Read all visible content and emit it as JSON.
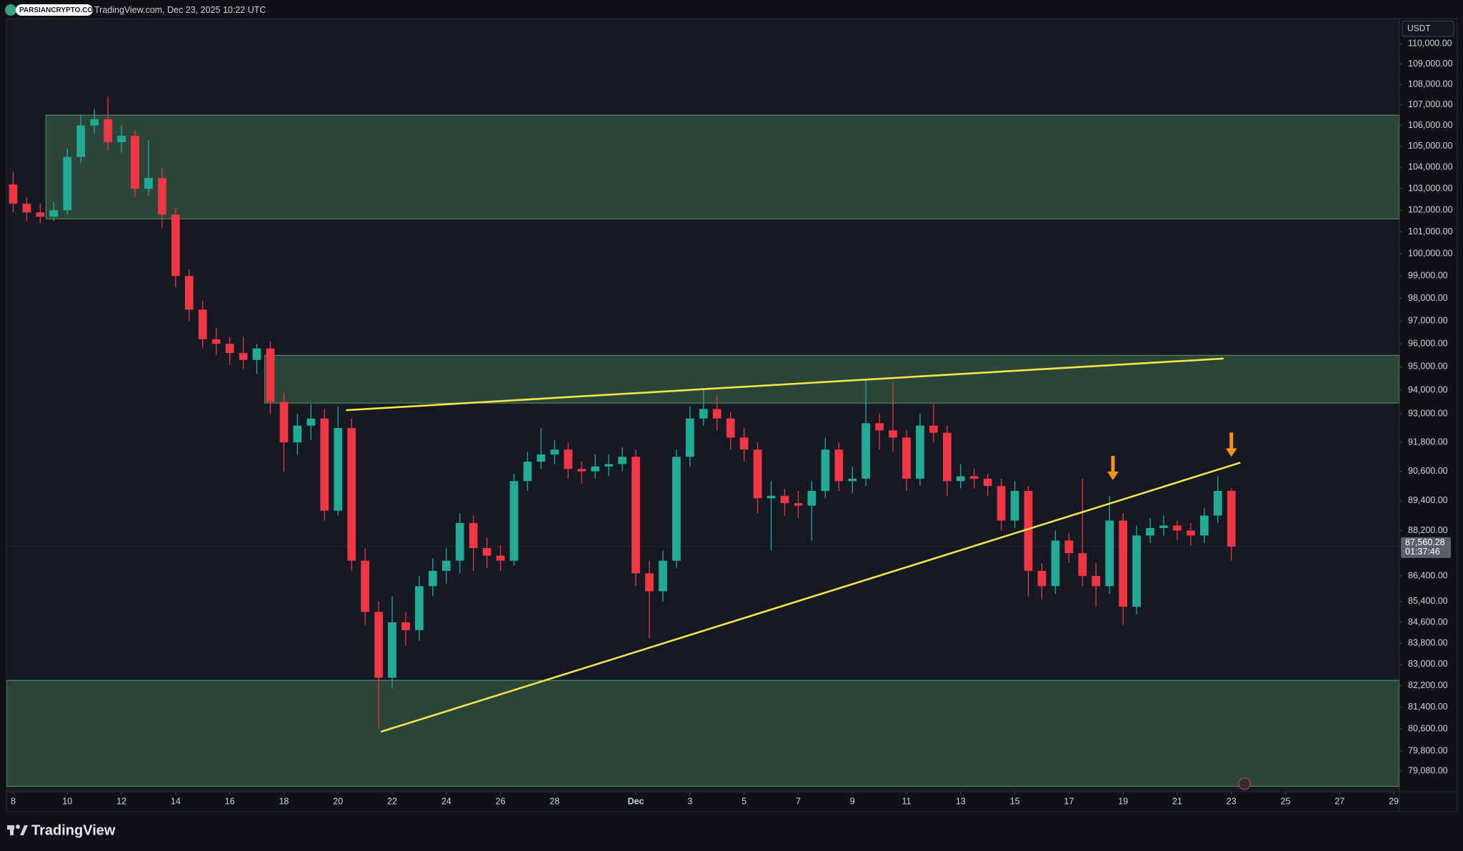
{
  "watermark": "PARSIANCRYPTO.COM",
  "source": "TradingView.com, Dec 23, 2025 10:22 UTC",
  "brand": "TradingView",
  "chart_data": {
    "type": "candlestick",
    "currency": "USDT",
    "log_scale": true,
    "grid": false,
    "up_color": "#22ab94",
    "down_color": "#f23645",
    "zone_color": "#2e4a3b",
    "zone_border": "#5a9468",
    "trendline_color": "#f2e54a",
    "marker_color": "#f7931a",
    "x": [
      "2025-11-08T00:00",
      "2025-11-08T12:00",
      "2025-11-09T00:00",
      "2025-11-09T12:00",
      "2025-11-10T00:00",
      "2025-11-10T12:00",
      "2025-11-11T00:00",
      "2025-11-11T12:00",
      "2025-11-12T00:00",
      "2025-11-12T12:00",
      "2025-11-13T00:00",
      "2025-11-13T12:00",
      "2025-11-14T00:00",
      "2025-11-14T12:00",
      "2025-11-15T00:00",
      "2025-11-15T12:00",
      "2025-11-16T00:00",
      "2025-11-16T12:00",
      "2025-11-17T00:00",
      "2025-11-17T12:00",
      "2025-11-18T00:00",
      "2025-11-18T12:00",
      "2025-11-19T00:00",
      "2025-11-19T12:00",
      "2025-11-20T00:00",
      "2025-11-20T12:00",
      "2025-11-21T00:00",
      "2025-11-21T12:00",
      "2025-11-22T00:00",
      "2025-11-22T12:00",
      "2025-11-23T00:00",
      "2025-11-23T12:00",
      "2025-11-24T00:00",
      "2025-11-24T12:00",
      "2025-11-25T00:00",
      "2025-11-25T12:00",
      "2025-11-26T00:00",
      "2025-11-26T12:00",
      "2025-11-27T00:00",
      "2025-11-27T12:00",
      "2025-11-28T00:00",
      "2025-11-28T12:00",
      "2025-11-29T00:00",
      "2025-11-29T12:00",
      "2025-11-30T00:00",
      "2025-11-30T12:00",
      "2025-12-01T00:00",
      "2025-12-01T12:00",
      "2025-12-02T00:00",
      "2025-12-02T12:00",
      "2025-12-03T00:00",
      "2025-12-03T12:00",
      "2025-12-04T00:00",
      "2025-12-04T12:00",
      "2025-12-05T00:00",
      "2025-12-05T12:00",
      "2025-12-06T00:00",
      "2025-12-06T12:00",
      "2025-12-07T00:00",
      "2025-12-07T12:00",
      "2025-12-08T00:00",
      "2025-12-08T12:00",
      "2025-12-09T00:00",
      "2025-12-09T12:00",
      "2025-12-10T00:00",
      "2025-12-10T12:00",
      "2025-12-11T00:00",
      "2025-12-11T12:00",
      "2025-12-12T00:00",
      "2025-12-12T12:00",
      "2025-12-13T00:00",
      "2025-12-13T12:00",
      "2025-12-14T00:00",
      "2025-12-14T12:00",
      "2025-12-15T00:00",
      "2025-12-15T12:00",
      "2025-12-16T00:00",
      "2025-12-16T12:00",
      "2025-12-17T00:00",
      "2025-12-17T12:00",
      "2025-12-18T00:00",
      "2025-12-18T12:00",
      "2025-12-19T00:00",
      "2025-12-19T12:00",
      "2025-12-20T00:00",
      "2025-12-20T12:00",
      "2025-12-21T00:00",
      "2025-12-21T12:00",
      "2025-12-22T00:00",
      "2025-12-22T12:00",
      "2025-12-23T00:00"
    ],
    "open": [
      103200,
      102300,
      101900,
      101700,
      102000,
      104500,
      106000,
      106300,
      105200,
      105500,
      103000,
      103500,
      101800,
      99000,
      97500,
      96200,
      96000,
      95600,
      95300,
      95800,
      93500,
      91800,
      92500,
      92800,
      89000,
      92400,
      87000,
      85000,
      82500,
      84600,
      84300,
      86000,
      86600,
      87000,
      88500,
      87500,
      87200,
      87000,
      90200,
      91000,
      91300,
      91500,
      90700,
      90600,
      90800,
      90900,
      91200,
      86500,
      85800,
      87000,
      91200,
      92800,
      93200,
      92800,
      92000,
      91500,
      89500,
      89600,
      89300,
      89200,
      89800,
      91500,
      90200,
      90300,
      92600,
      92300,
      92000,
      90300,
      92500,
      92200,
      90200,
      90400,
      90300,
      90000,
      88600,
      89800,
      86600,
      86000,
      87800,
      87300,
      86400,
      86000,
      88600,
      85200,
      88000,
      88300,
      88400,
      88200,
      88000,
      88800,
      89800
    ],
    "high": [
      103800,
      102600,
      102300,
      102400,
      104900,
      106500,
      106800,
      107400,
      106000,
      105800,
      105300,
      104000,
      102100,
      99300,
      97900,
      96700,
      96300,
      96300,
      96000,
      96100,
      93900,
      93000,
      93400,
      93200,
      93300,
      92800,
      87500,
      85400,
      85600,
      85000,
      86400,
      87100,
      87500,
      88900,
      88800,
      87900,
      87600,
      90500,
      91400,
      92400,
      91900,
      91800,
      91000,
      91300,
      91300,
      91600,
      91500,
      87000,
      87400,
      91500,
      93300,
      94000,
      93800,
      93100,
      92400,
      91800,
      90200,
      89900,
      89800,
      90200,
      92000,
      91800,
      90800,
      94500,
      93000,
      94300,
      92300,
      93000,
      93400,
      92500,
      90900,
      90700,
      90500,
      90300,
      90200,
      90000,
      86900,
      88200,
      88100,
      90300,
      86900,
      89600,
      88900,
      88400,
      88700,
      88800,
      88600,
      88500,
      89100,
      90400,
      89900
    ],
    "low": [
      101900,
      101500,
      101400,
      101500,
      101800,
      104200,
      105600,
      104800,
      104700,
      102600,
      102700,
      101200,
      98500,
      97000,
      95800,
      95500,
      95100,
      94900,
      94700,
      93000,
      90600,
      91300,
      91900,
      88600,
      88800,
      86600,
      84500,
      80600,
      82100,
      83700,
      83900,
      85600,
      86100,
      86500,
      86600,
      86700,
      86600,
      86800,
      89800,
      90700,
      90900,
      90300,
      90100,
      90300,
      90400,
      90600,
      86000,
      84000,
      85400,
      86700,
      90800,
      92500,
      92300,
      91500,
      91000,
      88900,
      87400,
      88800,
      88700,
      87800,
      89500,
      89800,
      89700,
      90000,
      91500,
      91400,
      89800,
      90000,
      91800,
      89600,
      89900,
      89900,
      89600,
      88200,
      88300,
      85600,
      85500,
      85700,
      86900,
      86000,
      85200,
      85700,
      84500,
      84900,
      87700,
      88000,
      87800,
      87600,
      87700,
      88500,
      87000
    ],
    "close": [
      102300,
      101900,
      101700,
      102000,
      104500,
      106000,
      106300,
      105200,
      105500,
      103000,
      103500,
      101800,
      99000,
      97500,
      96200,
      96000,
      95600,
      95300,
      95800,
      93500,
      91800,
      92500,
      92800,
      89000,
      92400,
      87000,
      85000,
      82500,
      84600,
      84300,
      86000,
      86600,
      87000,
      88500,
      87500,
      87200,
      87000,
      90200,
      91000,
      91300,
      91500,
      90700,
      90600,
      90800,
      90900,
      91200,
      86500,
      85800,
      87000,
      91200,
      92800,
      93200,
      92800,
      92000,
      91500,
      89500,
      89600,
      89300,
      89200,
      89800,
      91500,
      90200,
      90300,
      92600,
      92300,
      92000,
      90300,
      92500,
      92200,
      90200,
      90400,
      90300,
      90000,
      88600,
      89800,
      86600,
      86000,
      87800,
      87300,
      86400,
      86000,
      88600,
      85200,
      88000,
      88300,
      88400,
      88200,
      88000,
      88800,
      89800,
      87560.28
    ],
    "last_price": {
      "value": 87560.28,
      "label": "87,560.28"
    },
    "countdown": "01:37:46",
    "zones": [
      {
        "x_start": "2025-11-09T05:00",
        "low": 101600,
        "high": 106500
      },
      {
        "x_start": "2025-11-17T07:00",
        "low": 93450,
        "high": 95500
      },
      {
        "low": 78530,
        "high": 82400
      }
    ],
    "trendlines": [
      {
        "x": [
          "2025-11-20T07:00",
          "2025-12-22T17:00"
        ],
        "y": [
          93150,
          95360
        ]
      },
      {
        "x": [
          "2025-11-21T14:00",
          "2025-12-23T08:00"
        ],
        "y": [
          80500,
          90960
        ]
      }
    ],
    "markers": [
      {
        "x": "2025-12-18T15:00",
        "y": 90240
      },
      {
        "x": "2025-12-23T00:00",
        "y": 91200
      }
    ],
    "xlim": [
      "2025-11-07T18:00",
      "2025-12-29T05:00"
    ],
    "ylim": [
      78340,
      111270
    ],
    "xticks": [
      {
        "value": "2025-11-08T00:00",
        "label": "8"
      },
      {
        "value": "2025-11-10T00:00",
        "label": "10"
      },
      {
        "value": "2025-11-12T00:00",
        "label": "12"
      },
      {
        "value": "2025-11-14T00:00",
        "label": "14"
      },
      {
        "value": "2025-11-16T00:00",
        "label": "16"
      },
      {
        "value": "2025-11-18T00:00",
        "label": "18"
      },
      {
        "value": "2025-11-20T00:00",
        "label": "20"
      },
      {
        "value": "2025-11-22T00:00",
        "label": "22"
      },
      {
        "value": "2025-11-24T00:00",
        "label": "24"
      },
      {
        "value": "2025-11-26T00:00",
        "label": "26"
      },
      {
        "value": "2025-11-28T00:00",
        "label": "28"
      },
      {
        "value": "2025-12-01T00:00",
        "label": "Dec"
      },
      {
        "value": "2025-12-03T00:00",
        "label": "3"
      },
      {
        "value": "2025-12-05T00:00",
        "label": "5"
      },
      {
        "value": "2025-12-07T00:00",
        "label": "7"
      },
      {
        "value": "2025-12-09T00:00",
        "label": "9"
      },
      {
        "value": "2025-12-11T00:00",
        "label": "11"
      },
      {
        "value": "2025-12-13T00:00",
        "label": "13"
      },
      {
        "value": "2025-12-15T00:00",
        "label": "15"
      },
      {
        "value": "2025-12-17T00:00",
        "label": "17"
      },
      {
        "value": "2025-12-19T00:00",
        "label": "19"
      },
      {
        "value": "2025-12-21T00:00",
        "label": "21"
      },
      {
        "value": "2025-12-23T00:00",
        "label": "23"
      },
      {
        "value": "2025-12-25T00:00",
        "label": "25"
      },
      {
        "value": "2025-12-27T00:00",
        "label": "27"
      },
      {
        "value": "2025-12-29T00:00",
        "label": "29"
      }
    ],
    "yticks": [
      {
        "value": 110000,
        "label": "110,000.00"
      },
      {
        "value": 109000,
        "label": "109,000.00"
      },
      {
        "value": 108000,
        "label": "108,000.00"
      },
      {
        "value": 107000,
        "label": "107,000.00"
      },
      {
        "value": 106000,
        "label": "106,000.00"
      },
      {
        "value": 105000,
        "label": "105,000.00"
      },
      {
        "value": 104000,
        "label": "104,000.00"
      },
      {
        "value": 103000,
        "label": "103,000.00"
      },
      {
        "value": 102000,
        "label": "102,000.00"
      },
      {
        "value": 101000,
        "label": "101,000.00"
      },
      {
        "value": 100000,
        "label": "100,000.00"
      },
      {
        "value": 99000,
        "label": "99,000.00"
      },
      {
        "value": 98000,
        "label": "98,000.00"
      },
      {
        "value": 97000,
        "label": "97,000.00"
      },
      {
        "value": 96000,
        "label": "96,000.00"
      },
      {
        "value": 95000,
        "label": "95,000.00"
      },
      {
        "value": 94000,
        "label": "94,000.00"
      },
      {
        "value": 93000,
        "label": "93,000.00"
      },
      {
        "value": 91800,
        "label": "91,800.00"
      },
      {
        "value": 90600,
        "label": "90,600.00"
      },
      {
        "value": 89400,
        "label": "89,400.00"
      },
      {
        "value": 88200,
        "label": "88,200.00"
      },
      {
        "value": 86400,
        "label": "86,400.00"
      },
      {
        "value": 85400,
        "label": "85,400.00"
      },
      {
        "value": 84600,
        "label": "84,600.00"
      },
      {
        "value": 83800,
        "label": "83,800.00"
      },
      {
        "value": 83000,
        "label": "83,000.00"
      },
      {
        "value": 82200,
        "label": "82,200.00"
      },
      {
        "value": 81400,
        "label": "81,400.00"
      },
      {
        "value": 80600,
        "label": "80,600.00"
      },
      {
        "value": 79800,
        "label": "79,800.00"
      },
      {
        "value": 79080,
        "label": "79,080.00"
      }
    ]
  }
}
